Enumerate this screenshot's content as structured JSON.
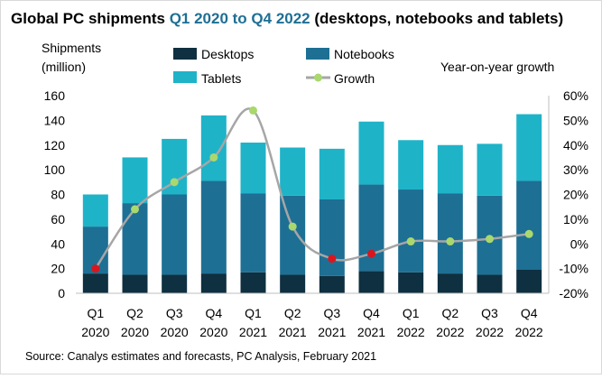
{
  "chart_data": {
    "type": "bar",
    "stacked": true,
    "title_parts": {
      "main": "Global PC shipments ",
      "highlight": "Q1 2020 to Q4 2022",
      "suffix": "  (desktops, notebooks and tablets)"
    },
    "categories": [
      {
        "q": "Q1",
        "year": "2020"
      },
      {
        "q": "Q2",
        "year": "2020"
      },
      {
        "q": "Q3",
        "year": "2020"
      },
      {
        "q": "Q4",
        "year": "2020"
      },
      {
        "q": "Q1",
        "year": "2021"
      },
      {
        "q": "Q2",
        "year": "2021"
      },
      {
        "q": "Q3",
        "year": "2021"
      },
      {
        "q": "Q4",
        "year": "2021"
      },
      {
        "q": "Q1",
        "year": "2022"
      },
      {
        "q": "Q2",
        "year": "2022"
      },
      {
        "q": "Q3",
        "year": "2022"
      },
      {
        "q": "Q4",
        "year": "2022"
      }
    ],
    "series": [
      {
        "name": "Desktops",
        "color": "#0e3040",
        "values": [
          16,
          15,
          15,
          16,
          17,
          15,
          14,
          18,
          17,
          16,
          15,
          19
        ]
      },
      {
        "name": "Notebooks",
        "color": "#1e6f94",
        "values": [
          38,
          58,
          65,
          75,
          64,
          64,
          62,
          70,
          67,
          65,
          64,
          72
        ]
      },
      {
        "name": "Tablets",
        "color": "#1fb3c8",
        "values": [
          26,
          37,
          45,
          53,
          41,
          39,
          41,
          51,
          40,
          39,
          42,
          54
        ]
      }
    ],
    "growth": {
      "name": "Growth",
      "line_color": "#a6a6a6",
      "positive_color": "#a9d86e",
      "negative_color": "#d9161e",
      "values": [
        -10,
        14,
        25,
        35,
        54,
        7,
        -6,
        -4,
        1,
        1,
        2,
        4
      ]
    },
    "y_left": {
      "label_line1": "Shipments",
      "label_line2": "(million)",
      "min": 0,
      "max": 160,
      "ticks": [
        0,
        20,
        40,
        60,
        80,
        100,
        120,
        140,
        160
      ]
    },
    "y_right": {
      "label": "Year-on-year growth",
      "min": -20,
      "max": 60,
      "ticks": [
        "-20%",
        "-10%",
        "0%",
        "10%",
        "20%",
        "30%",
        "40%",
        "50%",
        "60%"
      ]
    },
    "legend": {
      "position": "top-center"
    },
    "source": "Source: Canalys estimates and forecasts, PC Analysis, February 2021"
  }
}
